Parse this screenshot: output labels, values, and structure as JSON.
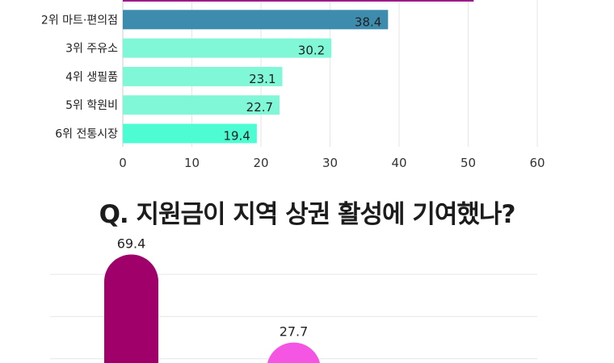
{
  "chart_data": [
    {
      "type": "bar",
      "orientation": "horizontal",
      "categories": [
        "",
        "2위 마트·편의점",
        "3위 주유소",
        "4위 생필품",
        "5위 학원비",
        "6위 전통시장"
      ],
      "values": [
        50.8,
        38.4,
        30.2,
        23.1,
        22.7,
        19.4
      ],
      "value_labels": [
        "",
        "38.4",
        "30.2",
        "23.1",
        "22.7",
        "19.4"
      ],
      "colors": [
        "#9c1a8a",
        "#3d8cae",
        "#80f7d6",
        "#80f7d6",
        "#80f7d6",
        "#4dfcd2"
      ],
      "xlim": [
        0,
        60
      ],
      "xticks": [
        "0",
        "10",
        "20",
        "30",
        "40",
        "50",
        "60"
      ],
      "grid": true
    },
    {
      "type": "bar",
      "orientation": "vertical",
      "title": "Q. 지원금이 지역 상권 활성에 기여했나?",
      "values": [
        69.4,
        27.7
      ],
      "value_labels": [
        "69.4",
        "27.7"
      ],
      "colors": [
        "#a0006a",
        "#f455e3"
      ],
      "gridlines": [
        20,
        40,
        60
      ],
      "grid": true
    }
  ]
}
